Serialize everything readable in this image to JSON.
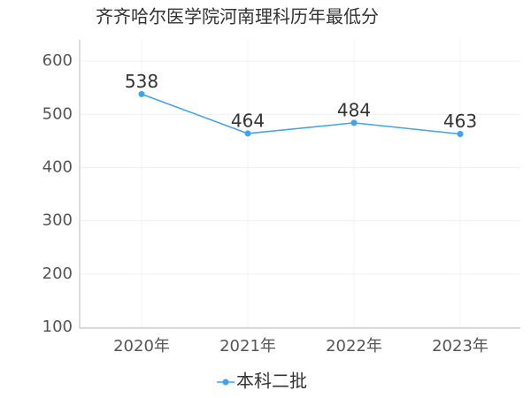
{
  "chart_data": {
    "type": "line",
    "title": "齐齐哈尔医学院河南理科历年最低分",
    "categories": [
      "2020年",
      "2021年",
      "2022年",
      "2023年"
    ],
    "series": [
      {
        "name": "本科二批",
        "color": "#3fa2f2",
        "values": [
          538,
          464,
          484,
          463
        ]
      }
    ],
    "ylim": [
      100,
      640
    ],
    "yticks": [
      100,
      200,
      300,
      400,
      500,
      600
    ],
    "grid": true
  }
}
